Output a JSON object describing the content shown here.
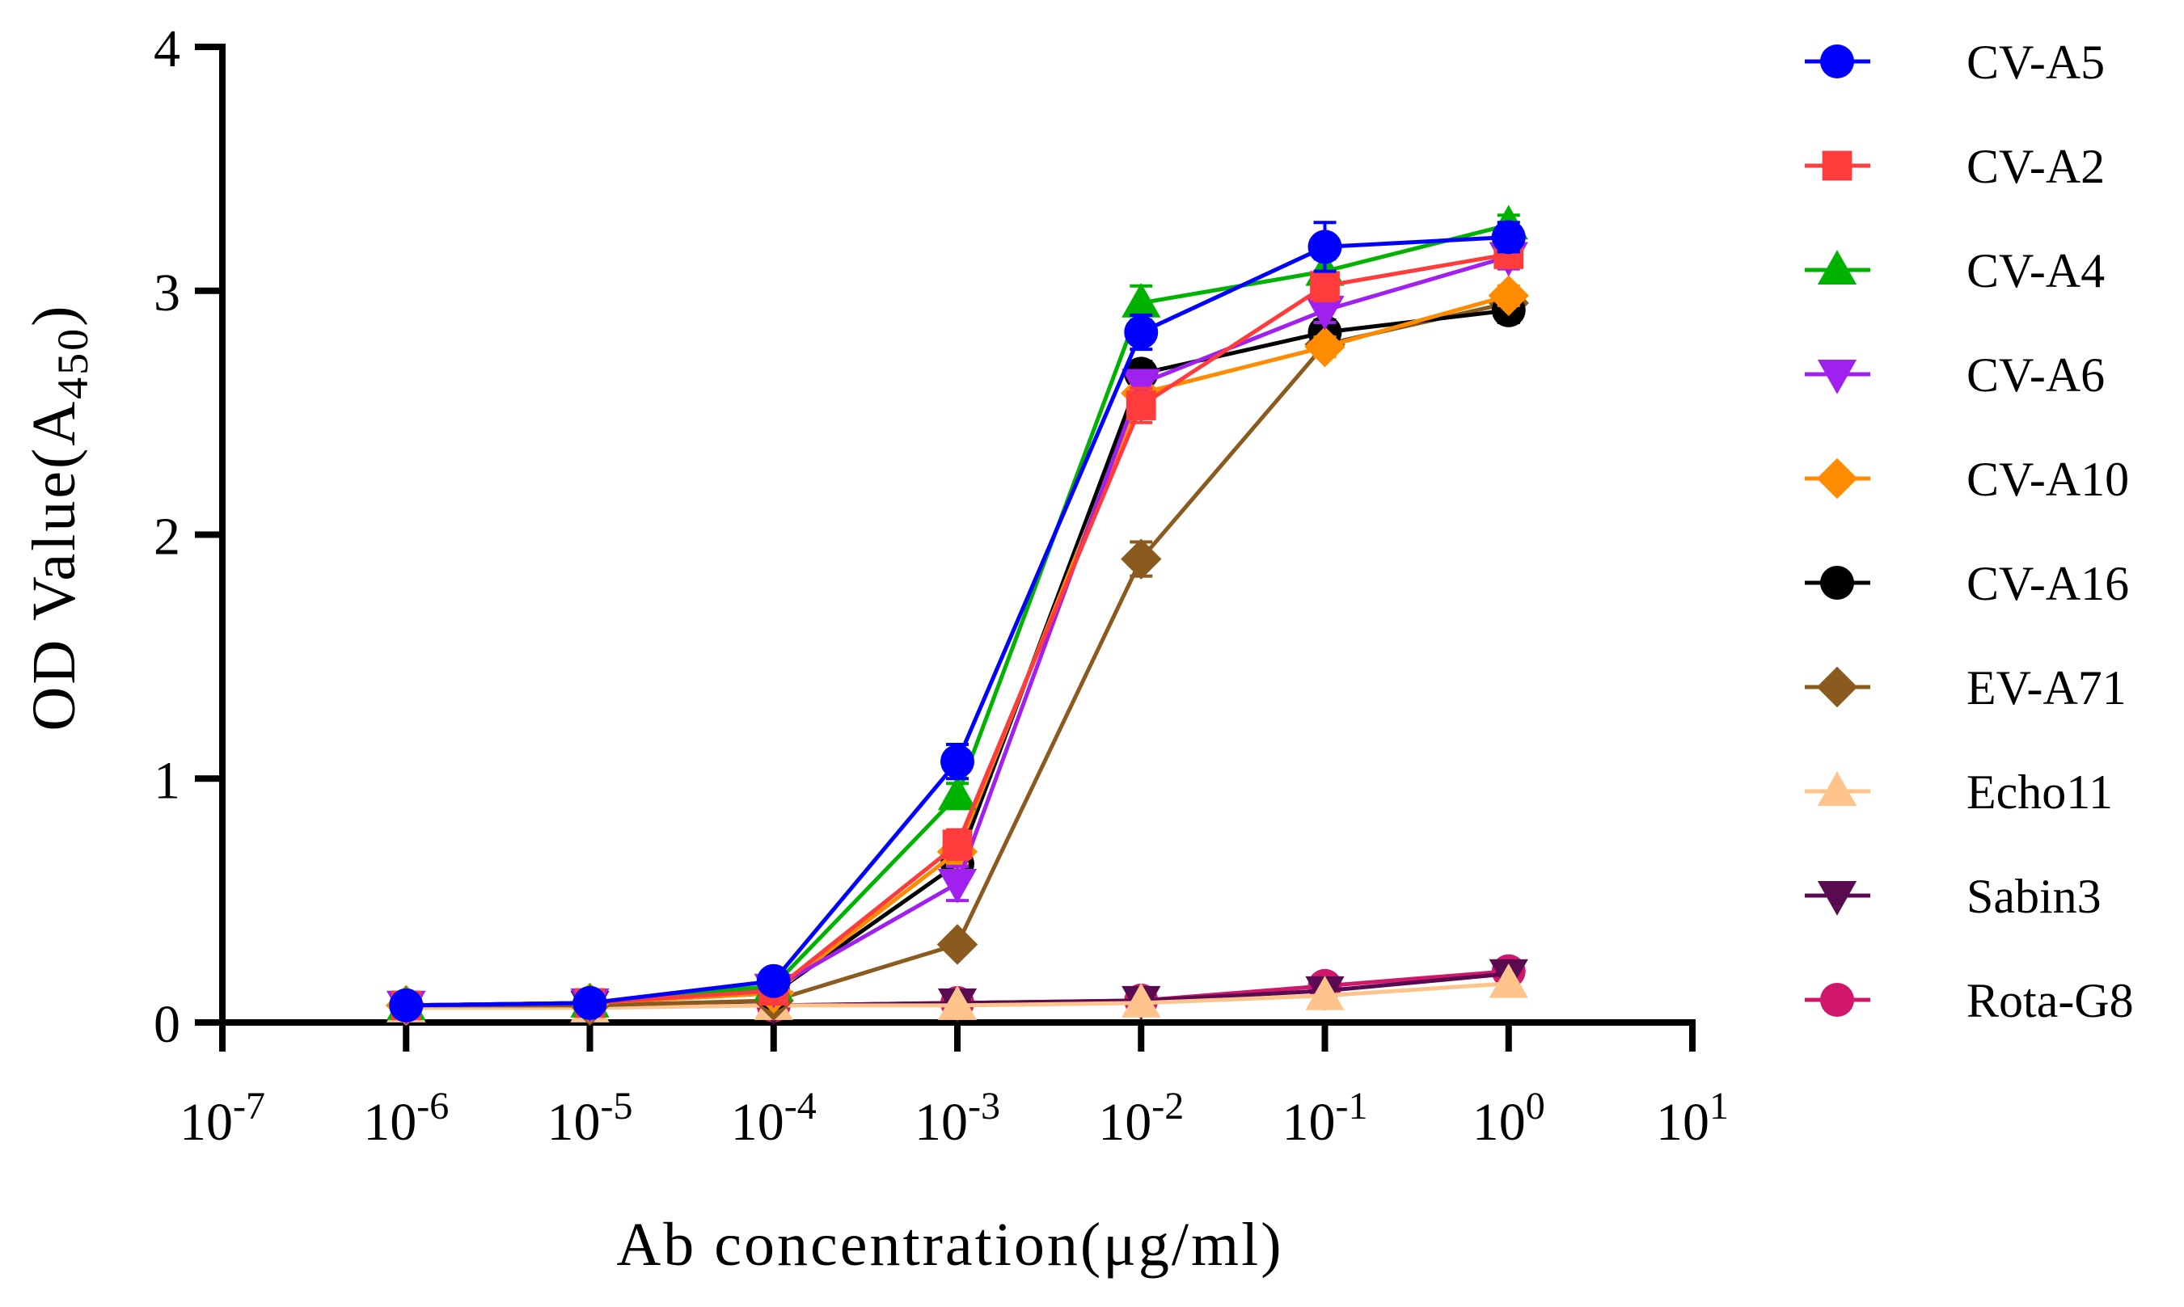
{
  "chart_data": {
    "type": "line",
    "xscale": "log",
    "xlabel": "Ab concentration(μg/ml)",
    "ylabel": "OD Value(A",
    "ylabel_sub": "450",
    "ylabel_close": ")",
    "xlim_exp": [
      -7,
      1
    ],
    "ylim": [
      0,
      4
    ],
    "yticks": [
      0,
      1,
      2,
      3,
      4
    ],
    "xtick_base": "10",
    "xtick_exps": [
      "-7",
      "-6",
      "-5",
      "-4",
      "-3",
      "-2",
      "-1",
      "0",
      "1"
    ],
    "x_exps": [
      -6,
      -5,
      -4,
      -3,
      -2,
      -1,
      0
    ],
    "legend_position": "right",
    "series": [
      {
        "name": "CV-A5",
        "color": "#0000FF",
        "marker": "circle",
        "values": [
          0.07,
          0.08,
          0.17,
          1.07,
          2.83,
          3.18,
          3.22
        ],
        "errors": [
          0.02,
          0.02,
          0.02,
          0.07,
          0.07,
          0.1,
          0.06
        ]
      },
      {
        "name": "CV-A2",
        "color": "#FF3B3B",
        "marker": "square",
        "values": [
          0.07,
          0.08,
          0.13,
          0.73,
          2.53,
          3.02,
          3.15
        ],
        "errors": [
          0.02,
          0.02,
          0.02,
          0.06,
          0.07,
          0.06,
          0.05
        ]
      },
      {
        "name": "CV-A4",
        "color": "#00B300",
        "marker": "triangle-up",
        "values": [
          0.07,
          0.08,
          0.15,
          0.93,
          2.95,
          3.08,
          3.27
        ],
        "errors": [
          0.02,
          0.02,
          0.02,
          0.05,
          0.07,
          0.05,
          0.04
        ]
      },
      {
        "name": "CV-A6",
        "color": "#A020F0",
        "marker": "triangle-down",
        "values": [
          0.07,
          0.08,
          0.14,
          0.57,
          2.62,
          2.92,
          3.14
        ],
        "errors": [
          0.02,
          0.02,
          0.02,
          0.07,
          0.05,
          0.05,
          0.05
        ]
      },
      {
        "name": "CV-A10",
        "color": "#FF8C00",
        "marker": "diamond",
        "values": [
          0.07,
          0.08,
          0.12,
          0.7,
          2.58,
          2.77,
          2.98
        ],
        "errors": [
          0.02,
          0.02,
          0.02,
          0.05,
          0.05,
          0.04,
          0.04
        ]
      },
      {
        "name": "CV-A16",
        "color": "#000000",
        "marker": "circle",
        "values": [
          0.07,
          0.08,
          0.12,
          0.65,
          2.66,
          2.83,
          2.92
        ],
        "errors": [
          0.02,
          0.02,
          0.02,
          0.05,
          0.05,
          0.05,
          0.05
        ]
      },
      {
        "name": "EV-A71",
        "color": "#8B5A1E",
        "marker": "diamond",
        "values": [
          0.07,
          0.07,
          0.09,
          0.32,
          1.9,
          2.78,
          2.95
        ],
        "errors": [
          0.02,
          0.02,
          0.02,
          0.03,
          0.07,
          0.04,
          0.04
        ]
      },
      {
        "name": "Echo11",
        "color": "#FFC48C",
        "marker": "triangle-up",
        "values": [
          0.06,
          0.06,
          0.07,
          0.07,
          0.08,
          0.11,
          0.16
        ],
        "errors": [
          0.01,
          0.01,
          0.01,
          0.01,
          0.01,
          0.01,
          0.02
        ]
      },
      {
        "name": "Sabin3",
        "color": "#5A0A50",
        "marker": "triangle-down",
        "values": [
          0.07,
          0.07,
          0.07,
          0.08,
          0.09,
          0.13,
          0.2
        ],
        "errors": [
          0.01,
          0.01,
          0.01,
          0.01,
          0.01,
          0.01,
          0.02
        ]
      },
      {
        "name": "Rota-G8",
        "color": "#D0176B",
        "marker": "circle",
        "values": [
          0.07,
          0.07,
          0.07,
          0.08,
          0.09,
          0.15,
          0.21
        ],
        "errors": [
          0.01,
          0.01,
          0.01,
          0.01,
          0.01,
          0.01,
          0.02
        ]
      }
    ]
  }
}
